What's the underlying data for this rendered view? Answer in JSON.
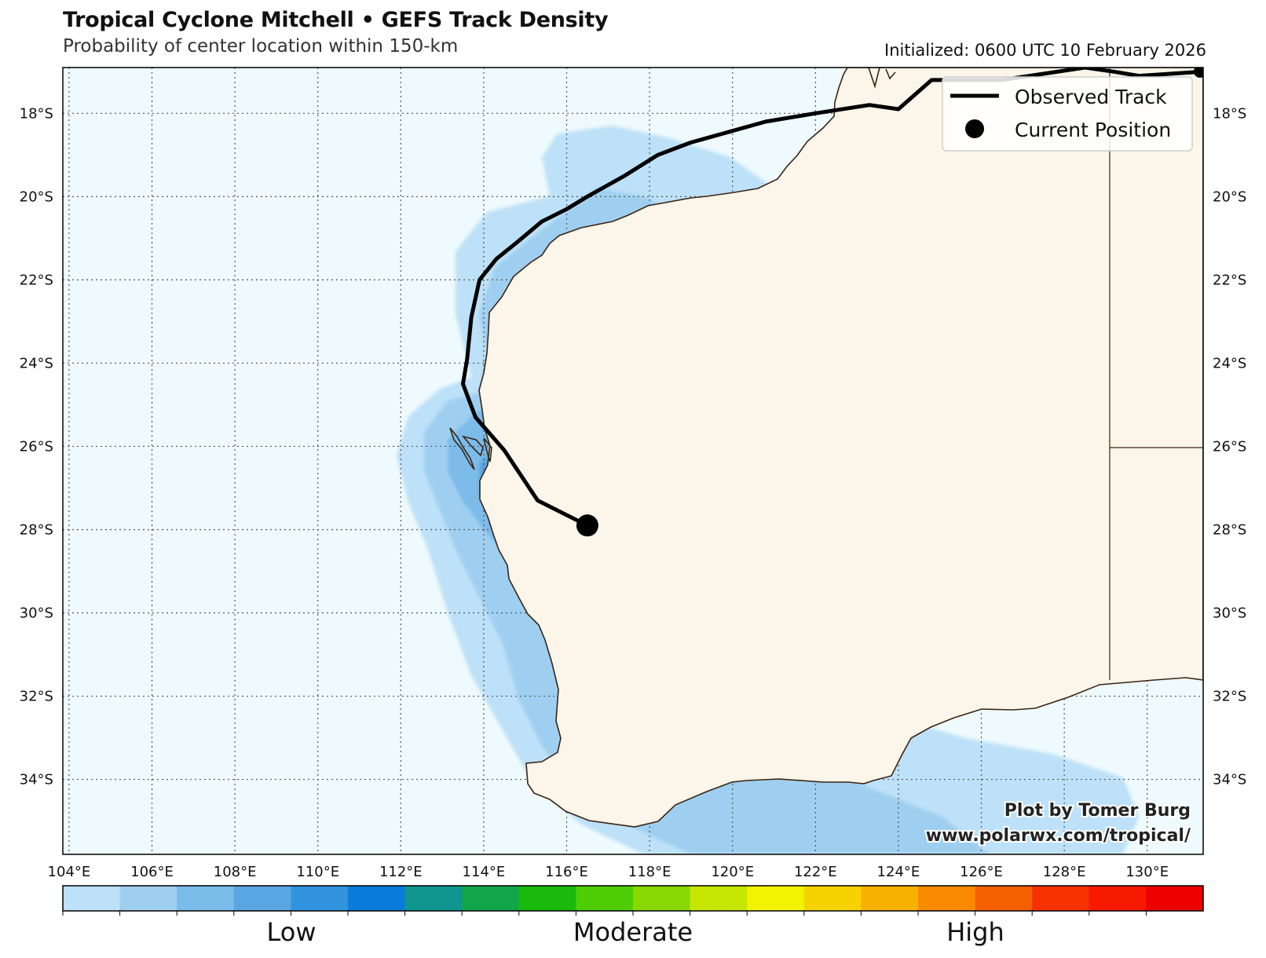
{
  "header": {
    "title": "Tropical Cyclone Mitchell • GEFS Track Density",
    "subtitle": "Probability of center location within 150-km",
    "initialized": "Initialized: 0600 UTC 10 February 2026"
  },
  "map": {
    "lon_range": [
      103.85,
      131.35
    ],
    "lat_range": [
      -35.8,
      -16.9
    ],
    "lon_ticks": [
      "104°E",
      "106°E",
      "108°E",
      "110°E",
      "112°E",
      "114°E",
      "116°E",
      "118°E",
      "120°E",
      "122°E",
      "124°E",
      "126°E",
      "128°E",
      "130°E"
    ],
    "lat_ticks": [
      "18°S",
      "20°S",
      "22°S",
      "24°S",
      "26°S",
      "28°S",
      "30°S",
      "32°S",
      "34°S"
    ],
    "colors": {
      "ocean": "#eefafd",
      "land": "#fbf5ea",
      "coast": "#3a2414",
      "track": "#000000"
    },
    "current_position": {
      "lon": 116.5,
      "lat": -27.9
    },
    "observed_track": [
      [
        131.3,
        -17.0
      ],
      [
        129.8,
        -17.1
      ],
      [
        129.2,
        -17.0
      ],
      [
        128.5,
        -16.9
      ],
      [
        126.5,
        -17.2
      ],
      [
        124.8,
        -17.2
      ],
      [
        124.0,
        -17.9
      ],
      [
        123.3,
        -17.8
      ],
      [
        122.0,
        -18.0
      ],
      [
        120.8,
        -18.2
      ],
      [
        119.0,
        -18.7
      ],
      [
        118.2,
        -19.0
      ],
      [
        117.4,
        -19.5
      ],
      [
        116.5,
        -20.0
      ],
      [
        116.0,
        -20.3
      ],
      [
        115.4,
        -20.6
      ],
      [
        114.8,
        -21.1
      ],
      [
        114.3,
        -21.5
      ],
      [
        113.9,
        -22.0
      ],
      [
        113.7,
        -22.9
      ],
      [
        113.6,
        -23.9
      ],
      [
        113.5,
        -24.5
      ],
      [
        113.8,
        -25.3
      ],
      [
        114.5,
        -26.1
      ],
      [
        115.3,
        -27.3
      ],
      [
        116.5,
        -27.9
      ]
    ]
  },
  "legend": {
    "observed_track": "Observed Track",
    "current_position": "Current Position"
  },
  "colorbar": {
    "colors": [
      "#bde1f8",
      "#9fcff0",
      "#7bbbea",
      "#59a6e2",
      "#3294df",
      "#0b7bd9",
      "#0e968f",
      "#12a64a",
      "#1ab90c",
      "#4dcd06",
      "#8ad803",
      "#c5e600",
      "#f2f300",
      "#f6d300",
      "#f7b100",
      "#f88a00",
      "#f65f00",
      "#f73200",
      "#f51a00",
      "#ed0000"
    ],
    "labels": [
      "Low",
      "Moderate",
      "High"
    ]
  },
  "credit": {
    "line1": "Plot by Tomer Burg",
    "line2": "www.polarwx.com/tropical/"
  }
}
